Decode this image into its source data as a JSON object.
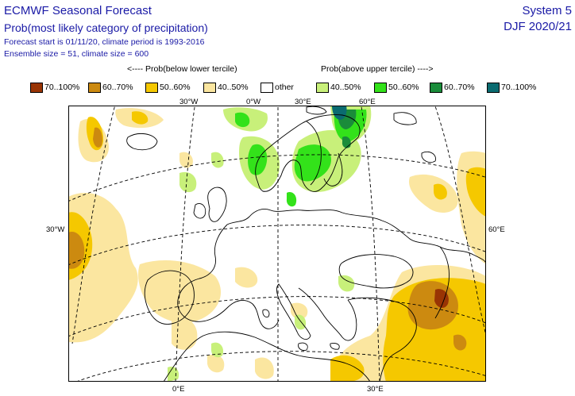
{
  "header": {
    "title": "ECMWF Seasonal Forecast",
    "subtitle": "Prob(most likely category of precipitation)",
    "forecast_line": "Forecast start is 01/11/20, climate period is 1993-2016",
    "ensemble_line": "Ensemble size = 51, climate size = 600",
    "system": "System 5",
    "season": "DJF 2020/21"
  },
  "legend": {
    "below_header": "<---- Prob(below lower tercile)",
    "above_header": "Prob(above upper tercile) ---->",
    "items": [
      {
        "label": "70..100%",
        "color": "#993404"
      },
      {
        "label": "60..70%",
        "color": "#cc8a10"
      },
      {
        "label": "50..60%",
        "color": "#f5c800"
      },
      {
        "label": "40..50%",
        "color": "#fbe6a0"
      },
      {
        "label": "other",
        "color": "#ffffff"
      },
      {
        "label": "40..50%",
        "color": "#c8f07a"
      },
      {
        "label": "50..60%",
        "color": "#33e21a"
      },
      {
        "label": "60..70%",
        "color": "#1a8c3a"
      },
      {
        "label": "70..100%",
        "color": "#0a6b70"
      }
    ]
  },
  "map": {
    "labels": {
      "top_30w": "30°W",
      "top_0w": "0°W",
      "top_30e": "30°E",
      "top_60e": "60°E",
      "left_30w": "30°W",
      "right_60e": "60°E",
      "bottom_0e": "0°E",
      "bottom_30e": "30°E"
    }
  }
}
